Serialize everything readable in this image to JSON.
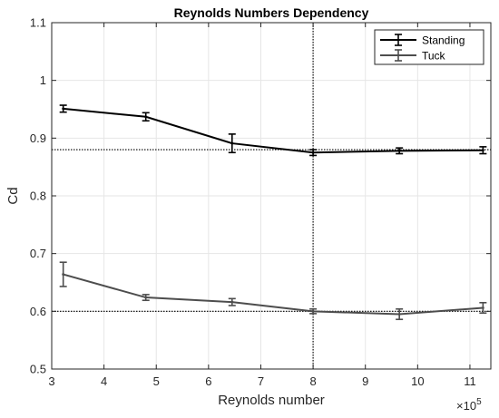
{
  "chart_data": {
    "type": "line",
    "title": "Reynolds Numbers Dependency",
    "xlabel": "Reynolds number",
    "ylabel": "Cd",
    "x_exponent_label": "×10",
    "x_exponent_power": "5",
    "xlim": [
      3,
      11.4
    ],
    "ylim": [
      0.5,
      1.1
    ],
    "xticks": [
      3,
      4,
      5,
      6,
      7,
      8,
      9,
      10,
      11
    ],
    "xtick_labels": [
      "3",
      "4",
      "5",
      "6",
      "7",
      "8",
      "9",
      "10",
      "11"
    ],
    "yticks": [
      0.5,
      0.6,
      0.7,
      0.8,
      0.9,
      1.0,
      1.1
    ],
    "ytick_labels": [
      "0.5",
      "0.6",
      "0.7",
      "0.8",
      "0.9",
      "1",
      "1.1"
    ],
    "grid": true,
    "legend_position": "top-right",
    "reference_lines": {
      "vertical_x": 8.0,
      "horizontal_y": [
        0.88,
        0.6
      ]
    },
    "series": [
      {
        "name": "Standing",
        "color": "#000000",
        "x": [
          3.22,
          4.8,
          6.45,
          8.0,
          9.65,
          11.25
        ],
        "y": [
          0.951,
          0.937,
          0.891,
          0.875,
          0.878,
          0.879
        ],
        "err": [
          0.006,
          0.007,
          0.016,
          0.005,
          0.005,
          0.006
        ]
      },
      {
        "name": "Tuck",
        "color": "#4d4d4d",
        "x": [
          3.22,
          4.8,
          6.45,
          8.0,
          9.65,
          11.25
        ],
        "y": [
          0.664,
          0.624,
          0.616,
          0.6,
          0.595,
          0.606
        ],
        "err": [
          0.021,
          0.005,
          0.006,
          0.004,
          0.009,
          0.009
        ]
      }
    ]
  }
}
